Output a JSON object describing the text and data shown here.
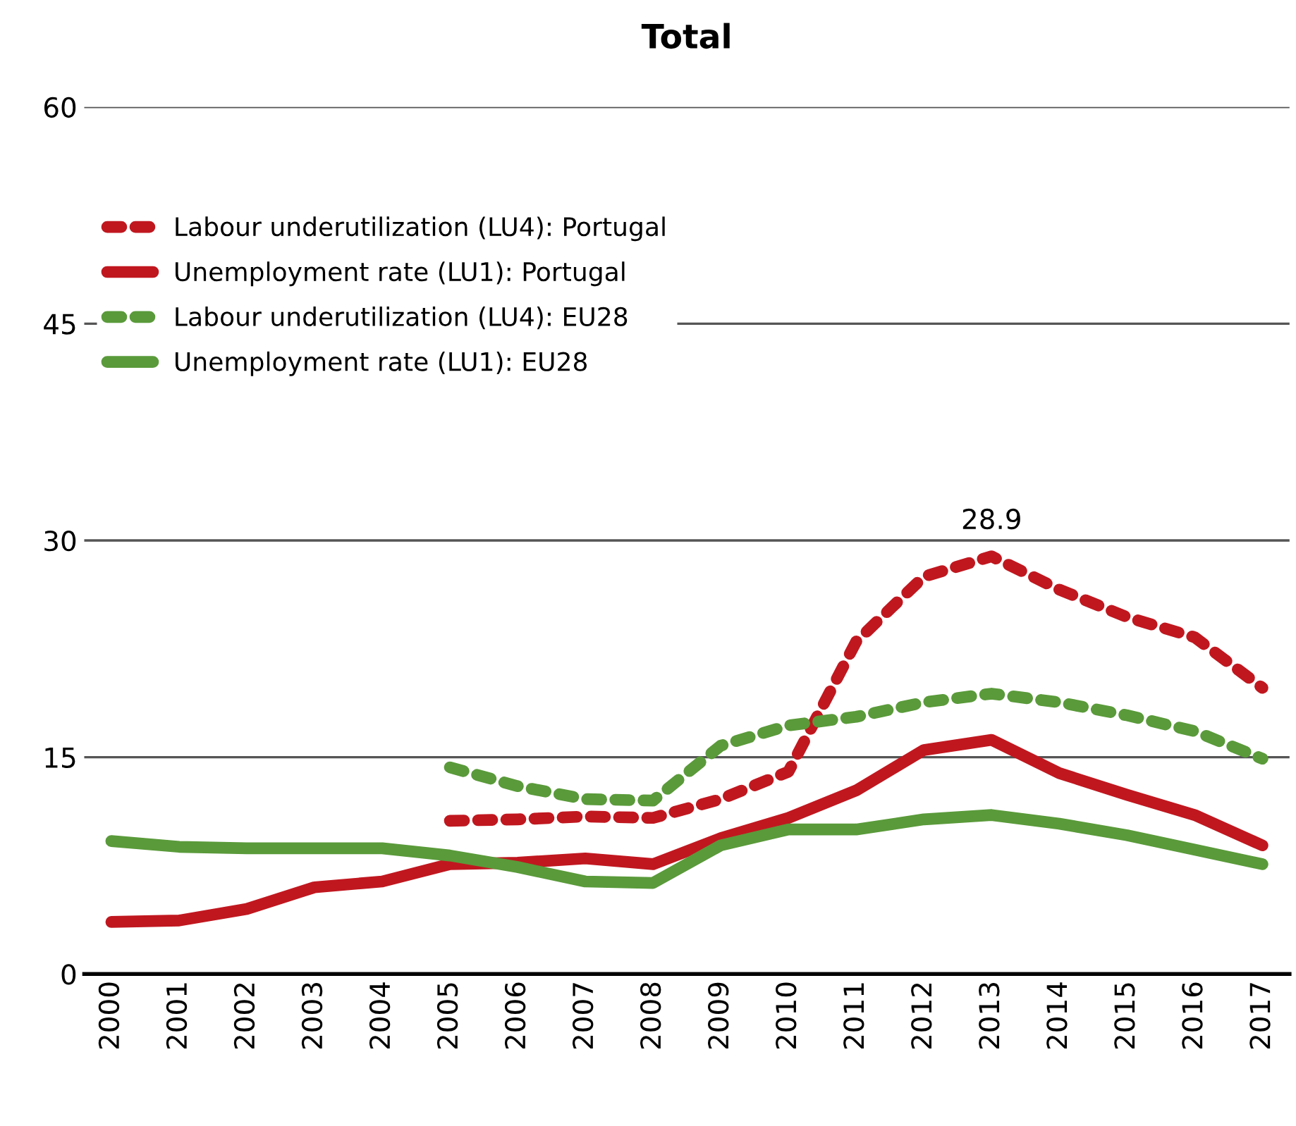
{
  "chart_data": {
    "type": "line",
    "title": "Total",
    "categories": [
      "2000",
      "2001",
      "2002",
      "2003",
      "2004",
      "2005",
      "2006",
      "2007",
      "2008",
      "2009",
      "2010",
      "2011",
      "2012",
      "2013",
      "2014",
      "2015",
      "2016",
      "2017"
    ],
    "series": [
      {
        "name": "Labour underutilization (LU4): Portugal",
        "color": "#c0171f",
        "line_style": "dotted",
        "values": [
          null,
          null,
          null,
          null,
          null,
          10.6,
          10.7,
          10.9,
          10.8,
          12.1,
          14.0,
          23.0,
          27.5,
          28.9,
          26.6,
          24.7,
          23.3,
          19.8
        ]
      },
      {
        "name": "Unemployment rate (LU1): Portugal",
        "color": "#c0171f",
        "line_style": "solid",
        "values": [
          3.6,
          3.7,
          4.5,
          6.0,
          6.4,
          7.6,
          7.7,
          8.0,
          7.6,
          9.4,
          10.8,
          12.7,
          15.5,
          16.2,
          13.9,
          12.4,
          11.0,
          8.9
        ]
      },
      {
        "name": "Labour underutilization (LU4): EU28",
        "color": "#5a9a3a",
        "line_style": "dotted",
        "values": [
          null,
          null,
          null,
          null,
          null,
          14.3,
          13.0,
          12.1,
          12.0,
          15.8,
          17.2,
          17.8,
          18.8,
          19.4,
          18.8,
          17.9,
          16.8,
          14.9
        ]
      },
      {
        "name": "Unemployment rate (LU1): EU28",
        "color": "#5a9a3a",
        "line_style": "solid",
        "values": [
          9.2,
          8.8,
          8.7,
          8.7,
          8.7,
          8.2,
          7.4,
          6.4,
          6.3,
          8.9,
          10.0,
          10.0,
          10.7,
          11.0,
          10.4,
          9.6,
          8.6,
          7.6
        ]
      }
    ],
    "annotations": [
      {
        "text": "28.9",
        "x": "2013",
        "y": 28.9
      }
    ],
    "ylim": [
      0,
      60
    ],
    "yticks": [
      0,
      15,
      30,
      45,
      60
    ],
    "grid": "y",
    "legend": "top left"
  }
}
